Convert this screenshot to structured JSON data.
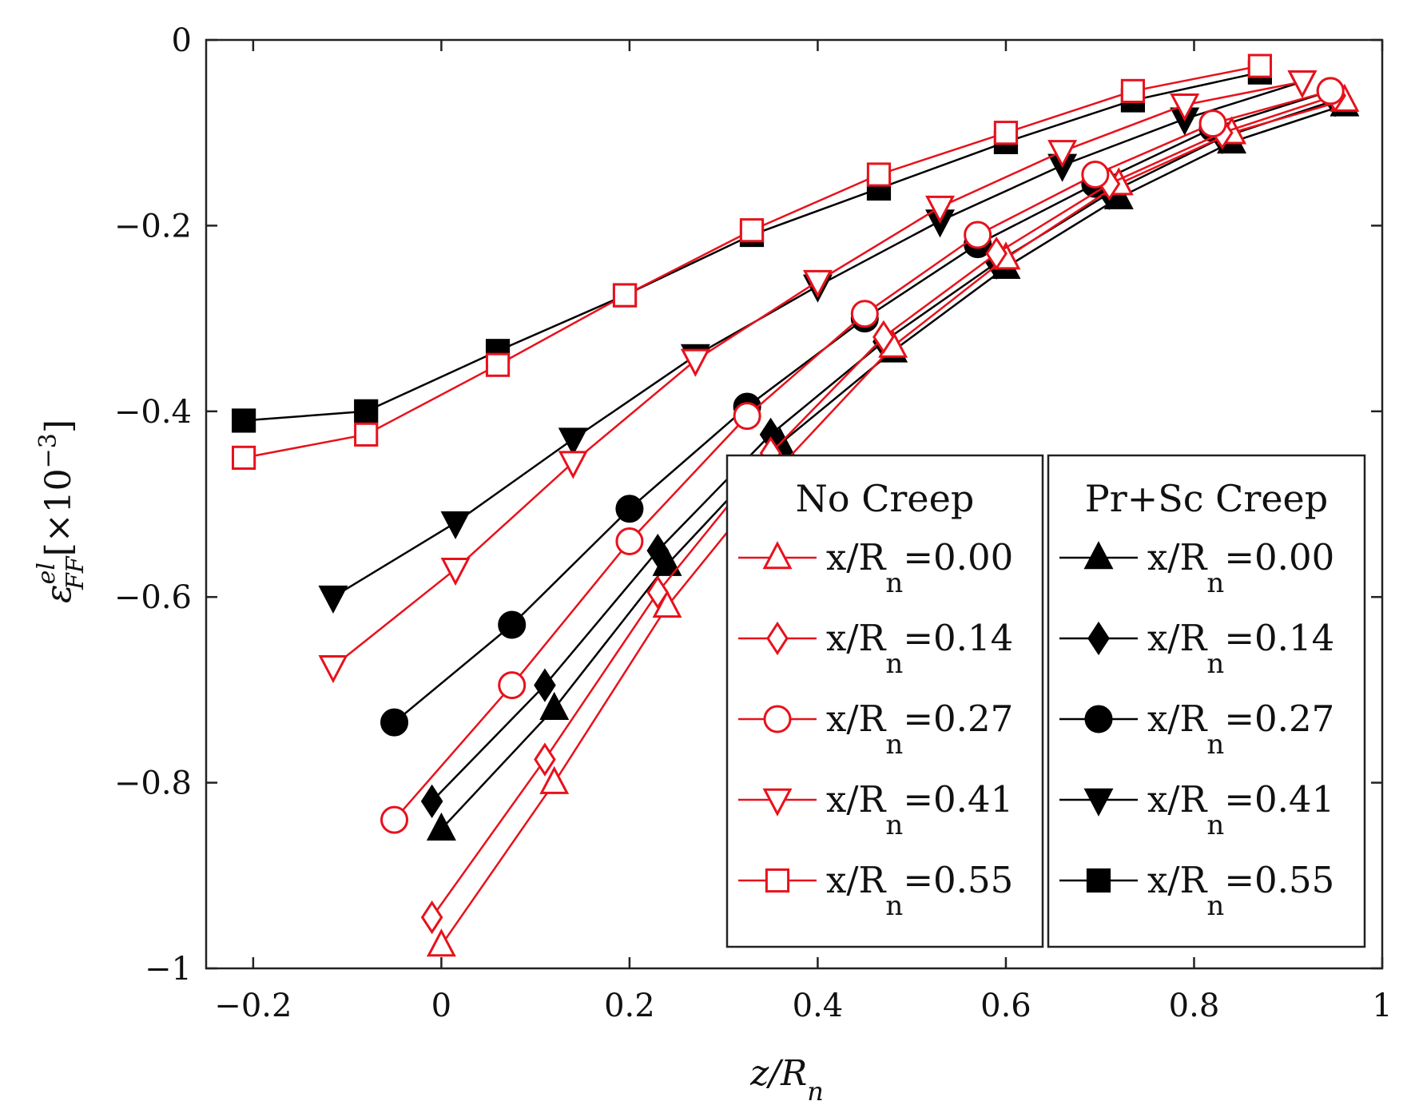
{
  "chart_data": {
    "type": "line",
    "title": "",
    "xlabel": "z/R",
    "xlabel_sub": "n",
    "ylabel_base": "ε",
    "ylabel_sup": "el",
    "ylabel_sub": "FF",
    "ylabel_unit": "[×10",
    "ylabel_unit_exp": "−3",
    "ylabel_unit_close": "]",
    "xlim": [
      -0.25,
      1.0
    ],
    "ylim": [
      -1.0,
      0.0
    ],
    "xticks": [
      {
        "value": -0.2,
        "label": "−0.2"
      },
      {
        "value": 0,
        "label": "0"
      },
      {
        "value": 0.2,
        "label": "0.2"
      },
      {
        "value": 0.4,
        "label": "0.4"
      },
      {
        "value": 0.6,
        "label": "0.6"
      },
      {
        "value": 0.8,
        "label": "0.8"
      },
      {
        "value": 1,
        "label": "1"
      }
    ],
    "yticks": [
      {
        "value": 0,
        "label": "0"
      },
      {
        "value": -0.2,
        "label": "−0.2"
      },
      {
        "value": -0.4,
        "label": "−0.4"
      },
      {
        "value": -0.6,
        "label": "−0.6"
      },
      {
        "value": -0.8,
        "label": "−0.8"
      },
      {
        "value": -1,
        "label": "−1"
      }
    ],
    "grid": false,
    "legend": {
      "placement": "bottom-right",
      "groups": [
        {
          "title": "No Creep",
          "style": "open-red",
          "labels": [
            "x/R",
            "x/R",
            "x/R",
            "x/R",
            "x/R"
          ],
          "sub": "n",
          "values": [
            "=0.00",
            "=0.14",
            "=0.27",
            "=0.41",
            "=0.55"
          ]
        },
        {
          "title": "Pr+Sc Creep",
          "style": "filled-black",
          "labels": [
            "x/R",
            "x/R",
            "x/R",
            "x/R",
            "x/R"
          ],
          "sub": "n",
          "values": [
            "=0.00",
            "=0.14",
            "=0.27",
            "=0.41",
            "=0.55"
          ]
        }
      ]
    },
    "series": [
      {
        "name": "No Creep x/Rn=0.00",
        "group": "No Creep",
        "marker": "triangle-up",
        "color": "#e8111b",
        "filled": false,
        "x": [
          0.0,
          0.12,
          0.24,
          0.36,
          0.48,
          0.6,
          0.72,
          0.84,
          0.96
        ],
        "y": [
          -0.975,
          -0.8,
          -0.61,
          -0.46,
          -0.33,
          -0.235,
          -0.155,
          -0.1,
          -0.065
        ]
      },
      {
        "name": "No Creep x/Rn=0.14",
        "group": "No Creep",
        "marker": "diamond",
        "color": "#e8111b",
        "filled": false,
        "x": [
          -0.01,
          0.11,
          0.23,
          0.35,
          0.47,
          0.59,
          0.71,
          0.83,
          0.95
        ],
        "y": [
          -0.945,
          -0.775,
          -0.595,
          -0.445,
          -0.32,
          -0.23,
          -0.155,
          -0.1,
          -0.06
        ]
      },
      {
        "name": "No Creep x/Rn=0.27",
        "group": "No Creep",
        "marker": "circle",
        "color": "#e8111b",
        "filled": false,
        "x": [
          -0.05,
          0.075,
          0.2,
          0.325,
          0.45,
          0.57,
          0.695,
          0.82,
          0.945
        ],
        "y": [
          -0.84,
          -0.695,
          -0.54,
          -0.405,
          -0.295,
          -0.21,
          -0.145,
          -0.09,
          -0.055
        ]
      },
      {
        "name": "No Creep x/Rn=0.41",
        "group": "No Creep",
        "marker": "triangle-down",
        "color": "#e8111b",
        "filled": false,
        "x": [
          -0.115,
          0.015,
          0.14,
          0.27,
          0.4,
          0.53,
          0.66,
          0.79,
          0.915
        ],
        "y": [
          -0.675,
          -0.57,
          -0.455,
          -0.345,
          -0.26,
          -0.18,
          -0.12,
          -0.07,
          -0.045
        ]
      },
      {
        "name": "No Creep x/Rn=0.55",
        "group": "No Creep",
        "marker": "square",
        "color": "#e8111b",
        "filled": false,
        "x": [
          -0.21,
          -0.08,
          0.06,
          0.195,
          0.33,
          0.465,
          0.6,
          0.735,
          0.87
        ],
        "y": [
          -0.45,
          -0.425,
          -0.35,
          -0.275,
          -0.205,
          -0.145,
          -0.1,
          -0.055,
          -0.028
        ]
      },
      {
        "name": "Pr+Sc Creep x/Rn=0.00",
        "group": "Pr+Sc Creep",
        "marker": "triangle-up",
        "color": "#000000",
        "filled": true,
        "x": [
          0.0,
          0.12,
          0.24,
          0.36,
          0.48,
          0.6,
          0.72,
          0.84,
          0.96
        ],
        "y": [
          -0.85,
          -0.72,
          -0.565,
          -0.435,
          -0.335,
          -0.245,
          -0.17,
          -0.11,
          -0.07
        ]
      },
      {
        "name": "Pr+Sc Creep x/Rn=0.14",
        "group": "Pr+Sc Creep",
        "marker": "diamond",
        "color": "#000000",
        "filled": true,
        "x": [
          -0.01,
          0.11,
          0.23,
          0.35,
          0.47,
          0.59,
          0.71,
          0.83,
          0.95
        ],
        "y": [
          -0.82,
          -0.695,
          -0.55,
          -0.425,
          -0.325,
          -0.24,
          -0.165,
          -0.105,
          -0.065
        ]
      },
      {
        "name": "Pr+Sc Creep x/Rn=0.27",
        "group": "Pr+Sc Creep",
        "marker": "circle",
        "color": "#000000",
        "filled": true,
        "x": [
          -0.05,
          0.075,
          0.2,
          0.325,
          0.45,
          0.57,
          0.695,
          0.82,
          0.945
        ],
        "y": [
          -0.735,
          -0.63,
          -0.505,
          -0.395,
          -0.3,
          -0.22,
          -0.155,
          -0.095,
          -0.055
        ]
      },
      {
        "name": "Pr+Sc Creep x/Rn=0.41",
        "group": "Pr+Sc Creep",
        "marker": "triangle-down",
        "color": "#000000",
        "filled": true,
        "x": [
          -0.115,
          0.015,
          0.14,
          0.27,
          0.4,
          0.53,
          0.66,
          0.79,
          0.915
        ],
        "y": [
          -0.6,
          -0.52,
          -0.43,
          -0.34,
          -0.265,
          -0.195,
          -0.135,
          -0.085,
          -0.045
        ]
      },
      {
        "name": "Pr+Sc Creep x/Rn=0.55",
        "group": "Pr+Sc Creep",
        "marker": "square",
        "color": "#000000",
        "filled": true,
        "x": [
          -0.21,
          -0.08,
          0.06,
          0.195,
          0.33,
          0.465,
          0.6,
          0.735,
          0.87
        ],
        "y": [
          -0.41,
          -0.4,
          -0.335,
          -0.275,
          -0.21,
          -0.16,
          -0.11,
          -0.065,
          -0.035
        ]
      }
    ]
  }
}
